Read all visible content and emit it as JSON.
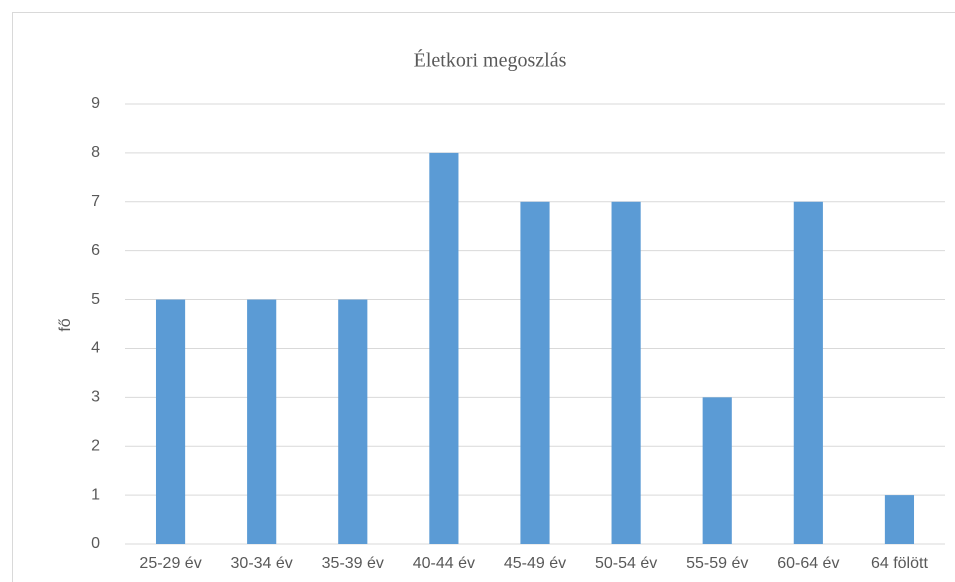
{
  "chart_data": {
    "type": "bar",
    "title": "Életkori megoszlás",
    "y_label": "fő",
    "categories": [
      "25-29 év",
      "30-34 év",
      "35-39 év",
      "40-44 év",
      "45-49 év",
      "50-54 év",
      "55-59 év",
      "60-64 év",
      "64 fölött"
    ],
    "values": [
      5,
      5,
      5,
      8,
      7,
      7,
      3,
      7,
      1
    ],
    "color": "#5b9bd5",
    "ylim": [
      0,
      9
    ],
    "yticks": [
      0,
      1,
      2,
      3,
      4,
      5,
      6,
      7,
      8,
      9
    ],
    "grid": true
  }
}
